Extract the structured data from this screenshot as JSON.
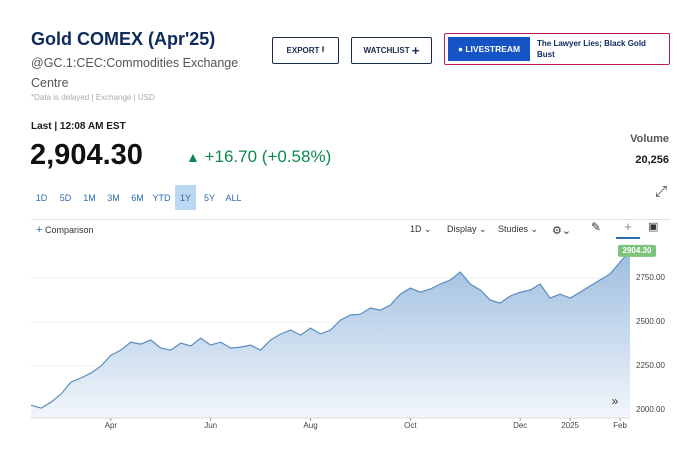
{
  "header": {
    "title": "Gold COMEX (Apr'25)",
    "symbol": "@GC.1:CEC:Commodities Exchange Centre",
    "note": "*Data is delayed | Exchange | USD"
  },
  "buttons": {
    "export": "EXPORT",
    "watchlist": "WATCHLIST"
  },
  "livestream": {
    "label": "LIVESTREAM",
    "headline": "The Lawyer Lies; Black Gold Bust"
  },
  "quote": {
    "last_time": "Last | 12:08 AM EST",
    "price": "2,904.30",
    "change": "+16.70 (+0.58%)",
    "volume_label": "Volume",
    "volume": "20,256"
  },
  "ranges": [
    "1D",
    "5D",
    "1M",
    "3M",
    "6M",
    "YTD",
    "1Y",
    "5Y",
    "ALL"
  ],
  "selected_range": 6,
  "toolbar": {
    "comparison": "Comparison",
    "interval": "1D",
    "display": "Display",
    "studies": "Studies"
  },
  "chart_data": {
    "type": "area",
    "color": "#5b8cc0",
    "categories": [
      null,
      null,
      null,
      null,
      null,
      null,
      null,
      null,
      "Apr",
      null,
      null,
      null,
      null,
      null,
      null,
      null,
      null,
      null,
      "Jun",
      null,
      null,
      null,
      null,
      null,
      null,
      null,
      null,
      null,
      "Aug",
      null,
      null,
      null,
      null,
      null,
      null,
      null,
      null,
      null,
      "Oct",
      null,
      null,
      null,
      null,
      null,
      null,
      null,
      null,
      null,
      null,
      "Dec",
      null,
      null,
      null,
      null,
      "2025",
      null,
      null,
      null,
      null,
      "Feb",
      null
    ],
    "values": [
      2028,
      2011,
      2045,
      2091,
      2159,
      2182,
      2210,
      2250,
      2312,
      2341,
      2386,
      2375,
      2398,
      2352,
      2341,
      2381,
      2364,
      2409,
      2369,
      2386,
      2352,
      2358,
      2369,
      2341,
      2398,
      2432,
      2455,
      2426,
      2466,
      2432,
      2455,
      2511,
      2540,
      2545,
      2580,
      2568,
      2597,
      2659,
      2693,
      2670,
      2688,
      2716,
      2739,
      2784,
      2716,
      2682,
      2625,
      2608,
      2648,
      2670,
      2682,
      2716,
      2636,
      2659,
      2636,
      2670,
      2705,
      2739,
      2773,
      2841,
      2904.3
    ],
    "price_tag": "2904.30",
    "ylim": [
      1955,
      2955
    ],
    "yticks": [
      {
        "value": 2000,
        "label": "2000.00"
      },
      {
        "value": 2250,
        "label": "2250.00"
      },
      {
        "value": 2500,
        "label": "2500.00"
      },
      {
        "value": 2750,
        "label": "2750.00"
      }
    ],
    "grid": true
  }
}
